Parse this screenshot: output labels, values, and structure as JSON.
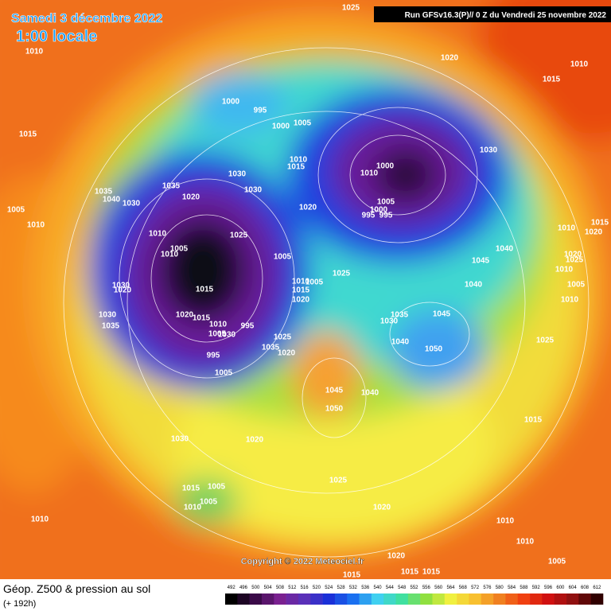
{
  "header": {
    "date": "Samedi 3 décembre 2022",
    "time": "1:00 locale",
    "run": "Run GFSv16.3(P)// 0 Z du Vendredi 25 novembre 2022"
  },
  "footer": {
    "title": "Géop. Z500 & pression au sol",
    "forecast": "(+ 192h)",
    "copyright": "Copyright © 2022 Meteociel.fr"
  },
  "legend": {
    "ticks": [
      492,
      496,
      500,
      504,
      508,
      512,
      516,
      520,
      524,
      528,
      532,
      536,
      540,
      544,
      548,
      552,
      556,
      560,
      564,
      568,
      572,
      576,
      580,
      584,
      588,
      592,
      596,
      600,
      604,
      608,
      612
    ]
  },
  "isobar_labels": [
    1025,
    1010,
    1020,
    1010,
    1015,
    1000,
    995,
    1005,
    1000,
    1015,
    1030,
    1010,
    1015,
    1000,
    1010,
    1035,
    1030,
    1030,
    1020,
    1035,
    1040,
    1030,
    1005,
    1020,
    1000,
    995,
    995,
    1005,
    1010,
    1015,
    1010,
    1020,
    1010,
    1025,
    1040,
    1005,
    1010,
    1005,
    1045,
    1020,
    1025,
    1010,
    1025,
    1010,
    1005,
    1040,
    1005,
    1030,
    1020,
    1015,
    1015,
    1020,
    1010,
    1030,
    1020,
    1035,
    1045,
    1015,
    1030,
    1035,
    1010,
    995,
    1005,
    1030,
    1025,
    1040,
    1050,
    1025,
    1035,
    1020,
    995,
    1005,
    1045,
    1040,
    1050,
    1015,
    1030,
    1020,
    1025,
    1015,
    1005,
    1005,
    1010,
    1020,
    1010,
    1010,
    1010,
    1020,
    1005,
    1015,
    1015,
    1015
  ]
}
